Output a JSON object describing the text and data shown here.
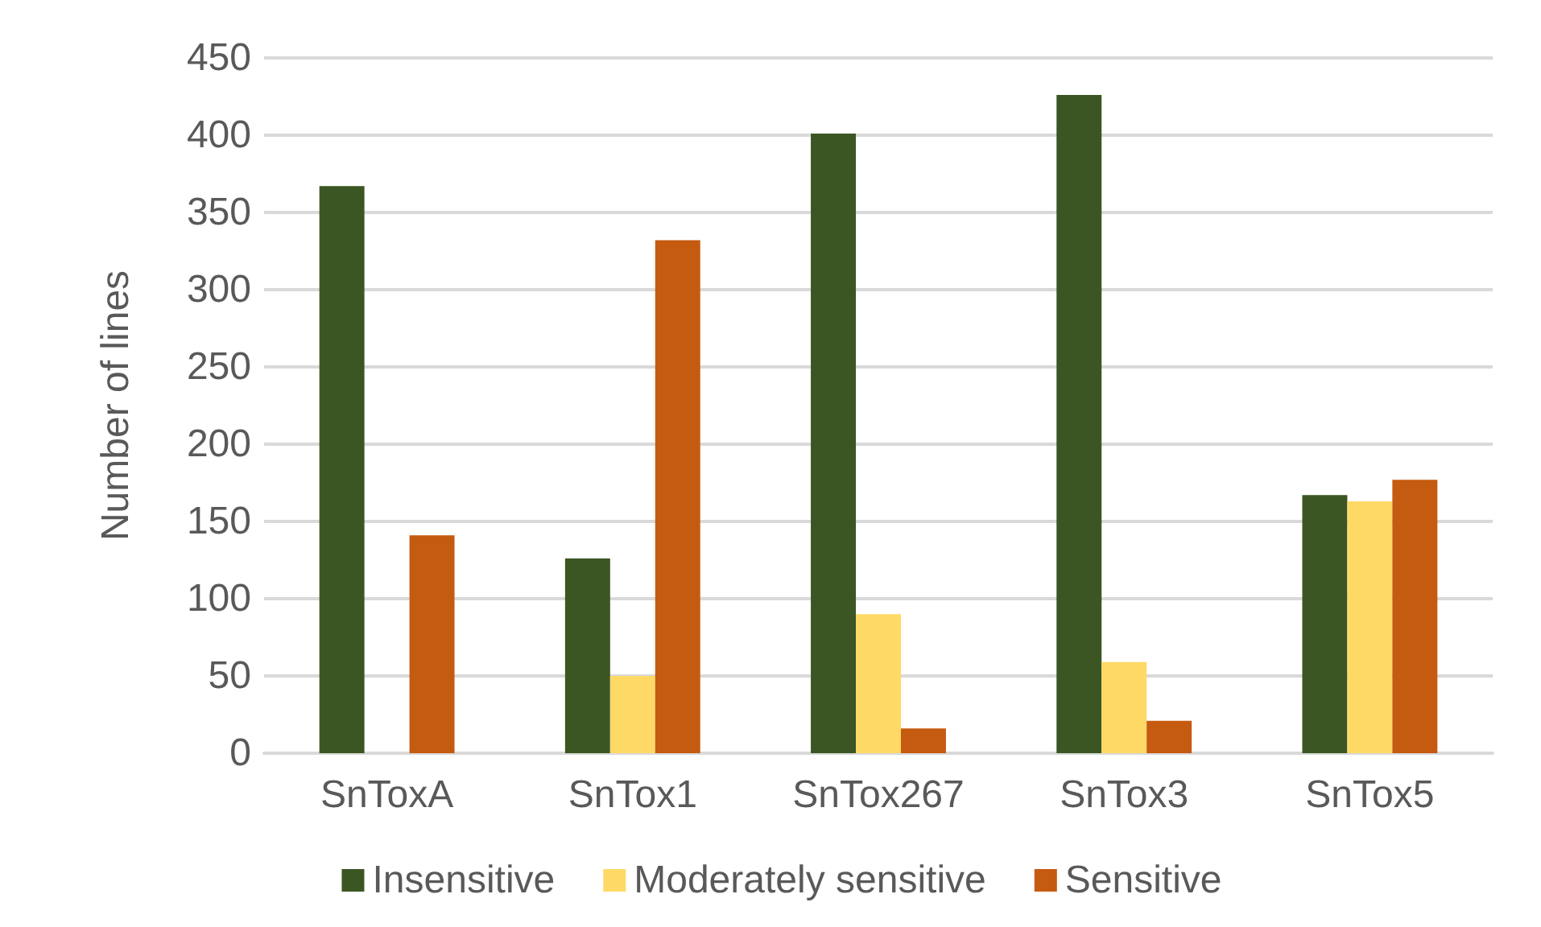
{
  "chart_data": {
    "type": "bar",
    "ylabel": "Number of lines",
    "categories": [
      "SnToxA",
      "SnTox1",
      "SnTox267",
      "SnTox3",
      "SnTox5"
    ],
    "series": [
      {
        "name": "Insensitive",
        "color": "#3b5623",
        "values": [
          367,
          126,
          401,
          426,
          167
        ]
      },
      {
        "name": "Moderately sensitive",
        "color": "#fed966",
        "values": [
          0,
          50,
          90,
          59,
          163
        ]
      },
      {
        "name": "Sensitive",
        "color": "#c55a11",
        "values": [
          141,
          332,
          16,
          21,
          177
        ]
      }
    ],
    "ylim": [
      0,
      450
    ],
    "yticks": [
      0,
      50,
      100,
      150,
      200,
      250,
      300,
      350,
      400,
      450
    ],
    "grid": "y",
    "legend": "bottom"
  }
}
